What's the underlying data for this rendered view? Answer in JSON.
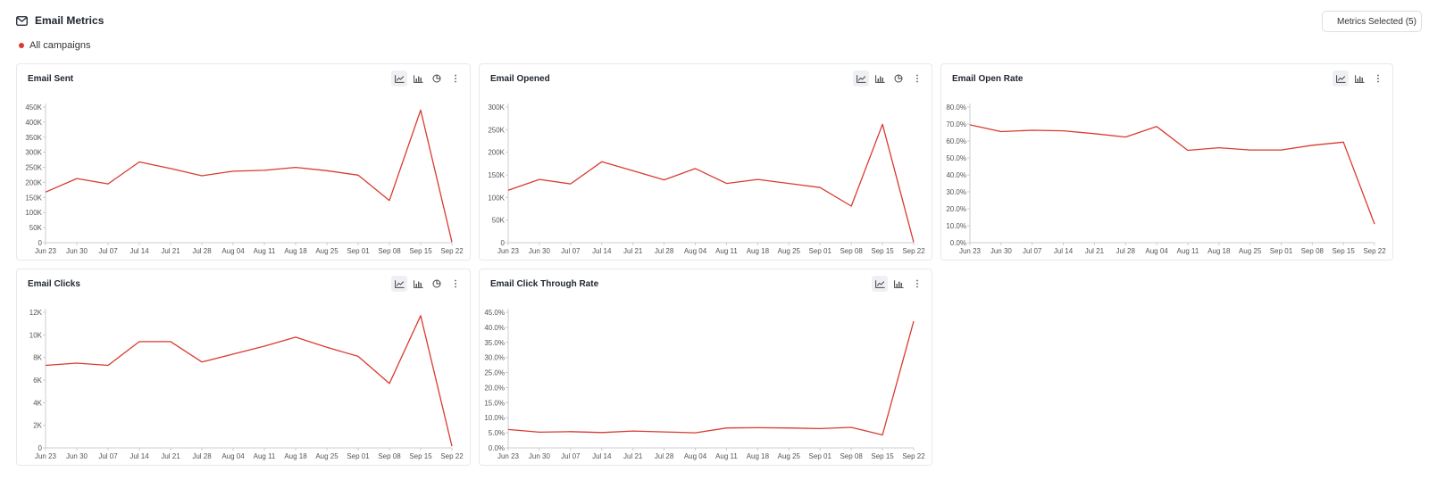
{
  "header": {
    "title": "Email Metrics",
    "title_icon": "mail-icon",
    "legend_label": "All campaigns",
    "legend_color": "#d93a2f",
    "metrics_button_label": "Metrics Selected (5)",
    "metrics_button_icon": "line-chart-icon"
  },
  "colors": {
    "series": "#d93a2f",
    "axis": "#c9ccd3",
    "text": "#555555",
    "active_icon_bg": "#eef0f4"
  },
  "chart_data": [
    {
      "type": "line",
      "title": "Email Sent",
      "view_options": [
        "line",
        "bar",
        "pie"
      ],
      "selected_view": "line",
      "categories": [
        "Jun 23",
        "Jun 30",
        "Jul 07",
        "Jul 14",
        "Jul 21",
        "Jul 28",
        "Aug 04",
        "Aug 11",
        "Aug 18",
        "Aug 25",
        "Sep 01",
        "Sep 08",
        "Sep 15",
        "Sep 22"
      ],
      "yticks": [
        "0",
        "50K",
        "100K",
        "150K",
        "200K",
        "250K",
        "300K",
        "350K",
        "400K",
        "450K"
      ],
      "ylim": [
        0,
        450000
      ],
      "series": [
        {
          "values": [
            168000,
            213000,
            195000,
            268000,
            246000,
            222000,
            237000,
            240000,
            250000,
            239000,
            224000,
            140000,
            440000,
            2000
          ]
        }
      ]
    },
    {
      "type": "line",
      "title": "Email Opened",
      "view_options": [
        "line",
        "bar",
        "pie"
      ],
      "selected_view": "line",
      "categories": [
        "Jun 23",
        "Jun 30",
        "Jul 07",
        "Jul 14",
        "Jul 21",
        "Jul 28",
        "Aug 04",
        "Aug 11",
        "Aug 18",
        "Aug 25",
        "Sep 01",
        "Sep 08",
        "Sep 15",
        "Sep 22"
      ],
      "yticks": [
        "0",
        "50K",
        "100K",
        "150K",
        "200K",
        "250K",
        "300K"
      ],
      "ylim": [
        0,
        300000
      ],
      "series": [
        {
          "values": [
            116000,
            140000,
            130000,
            179000,
            159000,
            139000,
            164000,
            131000,
            140000,
            131000,
            122000,
            81000,
            262000,
            1000
          ]
        }
      ]
    },
    {
      "type": "line",
      "title": "Email Open Rate",
      "view_options": [
        "line",
        "bar"
      ],
      "selected_view": "line",
      "categories": [
        "Jun 23",
        "Jun 30",
        "Jul 07",
        "Jul 14",
        "Jul 21",
        "Jul 28",
        "Aug 04",
        "Aug 11",
        "Aug 18",
        "Aug 25",
        "Sep 01",
        "Sep 08",
        "Sep 15",
        "Sep 22"
      ],
      "yticks": [
        "0.0%",
        "10.0%",
        "20.0%",
        "30.0%",
        "40.0%",
        "50.0%",
        "60.0%",
        "70.0%",
        "80.0%"
      ],
      "ylim": [
        0,
        80
      ],
      "series": [
        {
          "values": [
            69.5,
            65.5,
            66.3,
            66.0,
            64.3,
            62.3,
            68.5,
            54.5,
            56.0,
            54.7,
            54.7,
            57.5,
            59.3,
            11.0
          ]
        }
      ]
    },
    {
      "type": "line",
      "title": "Email Clicks",
      "view_options": [
        "line",
        "bar",
        "pie"
      ],
      "selected_view": "line",
      "categories": [
        "Jun 23",
        "Jun 30",
        "Jul 07",
        "Jul 14",
        "Jul 21",
        "Jul 28",
        "Aug 04",
        "Aug 11",
        "Aug 18",
        "Aug 25",
        "Sep 01",
        "Sep 08",
        "Sep 15",
        "Sep 22"
      ],
      "yticks": [
        "0",
        "2K",
        "4K",
        "6K",
        "8K",
        "10K",
        "12K"
      ],
      "ylim": [
        0,
        12000
      ],
      "series": [
        {
          "values": [
            7300,
            7500,
            7300,
            9400,
            9400,
            7600,
            8300,
            9000,
            9800,
            8900,
            8100,
            5700,
            11700,
            150
          ]
        }
      ]
    },
    {
      "type": "line",
      "title": "Email Click Through Rate",
      "view_options": [
        "line",
        "bar"
      ],
      "selected_view": "line",
      "categories": [
        "Jun 23",
        "Jun 30",
        "Jul 07",
        "Jul 14",
        "Jul 21",
        "Jul 28",
        "Aug 04",
        "Aug 11",
        "Aug 18",
        "Aug 25",
        "Sep 01",
        "Sep 08",
        "Sep 15",
        "Sep 22"
      ],
      "yticks": [
        "0.0%",
        "5.0%",
        "10.0%",
        "15.0%",
        "20.0%",
        "25.0%",
        "30.0%",
        "35.0%",
        "40.0%",
        "45.0%"
      ],
      "ylim": [
        0,
        45
      ],
      "series": [
        {
          "values": [
            6.1,
            5.2,
            5.4,
            5.1,
            5.6,
            5.3,
            5.0,
            6.6,
            6.7,
            6.6,
            6.4,
            6.8,
            4.3,
            42.0
          ]
        }
      ]
    }
  ]
}
